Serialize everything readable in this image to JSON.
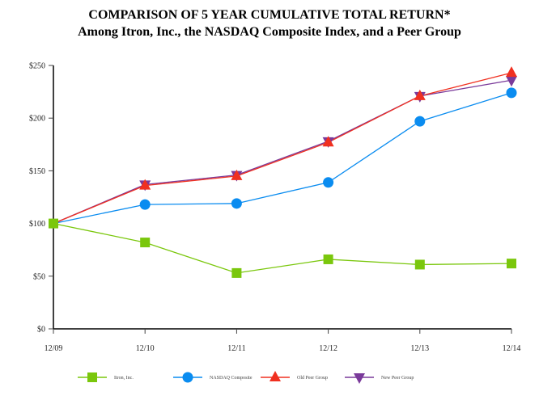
{
  "chart_data": {
    "type": "line",
    "title": "COMPARISON OF 5 YEAR CUMULATIVE TOTAL RETURN*",
    "subtitle": "Among Itron, Inc., the NASDAQ Composite Index, and a Peer Group",
    "xlabel": "",
    "ylabel": "",
    "categories": [
      "12/09",
      "12/10",
      "12/11",
      "12/12",
      "12/13",
      "12/14"
    ],
    "ylim": [
      0,
      250
    ],
    "yticks": [
      0,
      50,
      100,
      150,
      200,
      250
    ],
    "ytick_labels": [
      "$0",
      "$50",
      "$100",
      "$150",
      "$200",
      "$250"
    ],
    "grid": false,
    "legend_position": "bottom",
    "series": [
      {
        "name": "Itron, Inc.",
        "color": "#7ac70c",
        "marker": "square",
        "values": [
          100,
          82,
          53,
          66,
          61,
          62
        ]
      },
      {
        "name": "NASDAQ Composite",
        "color": "#0a8cf0",
        "marker": "circle",
        "values": [
          100,
          118,
          119,
          139,
          197,
          224
        ]
      },
      {
        "name": "Old Peer Group",
        "color": "#f03020",
        "marker": "triangle-up",
        "values": [
          100,
          136,
          145,
          177,
          221,
          243
        ]
      },
      {
        "name": "New Peer Group",
        "color": "#7a3a9a",
        "marker": "triangle-down",
        "values": [
          100,
          137,
          146,
          178,
          221,
          236
        ]
      }
    ]
  }
}
